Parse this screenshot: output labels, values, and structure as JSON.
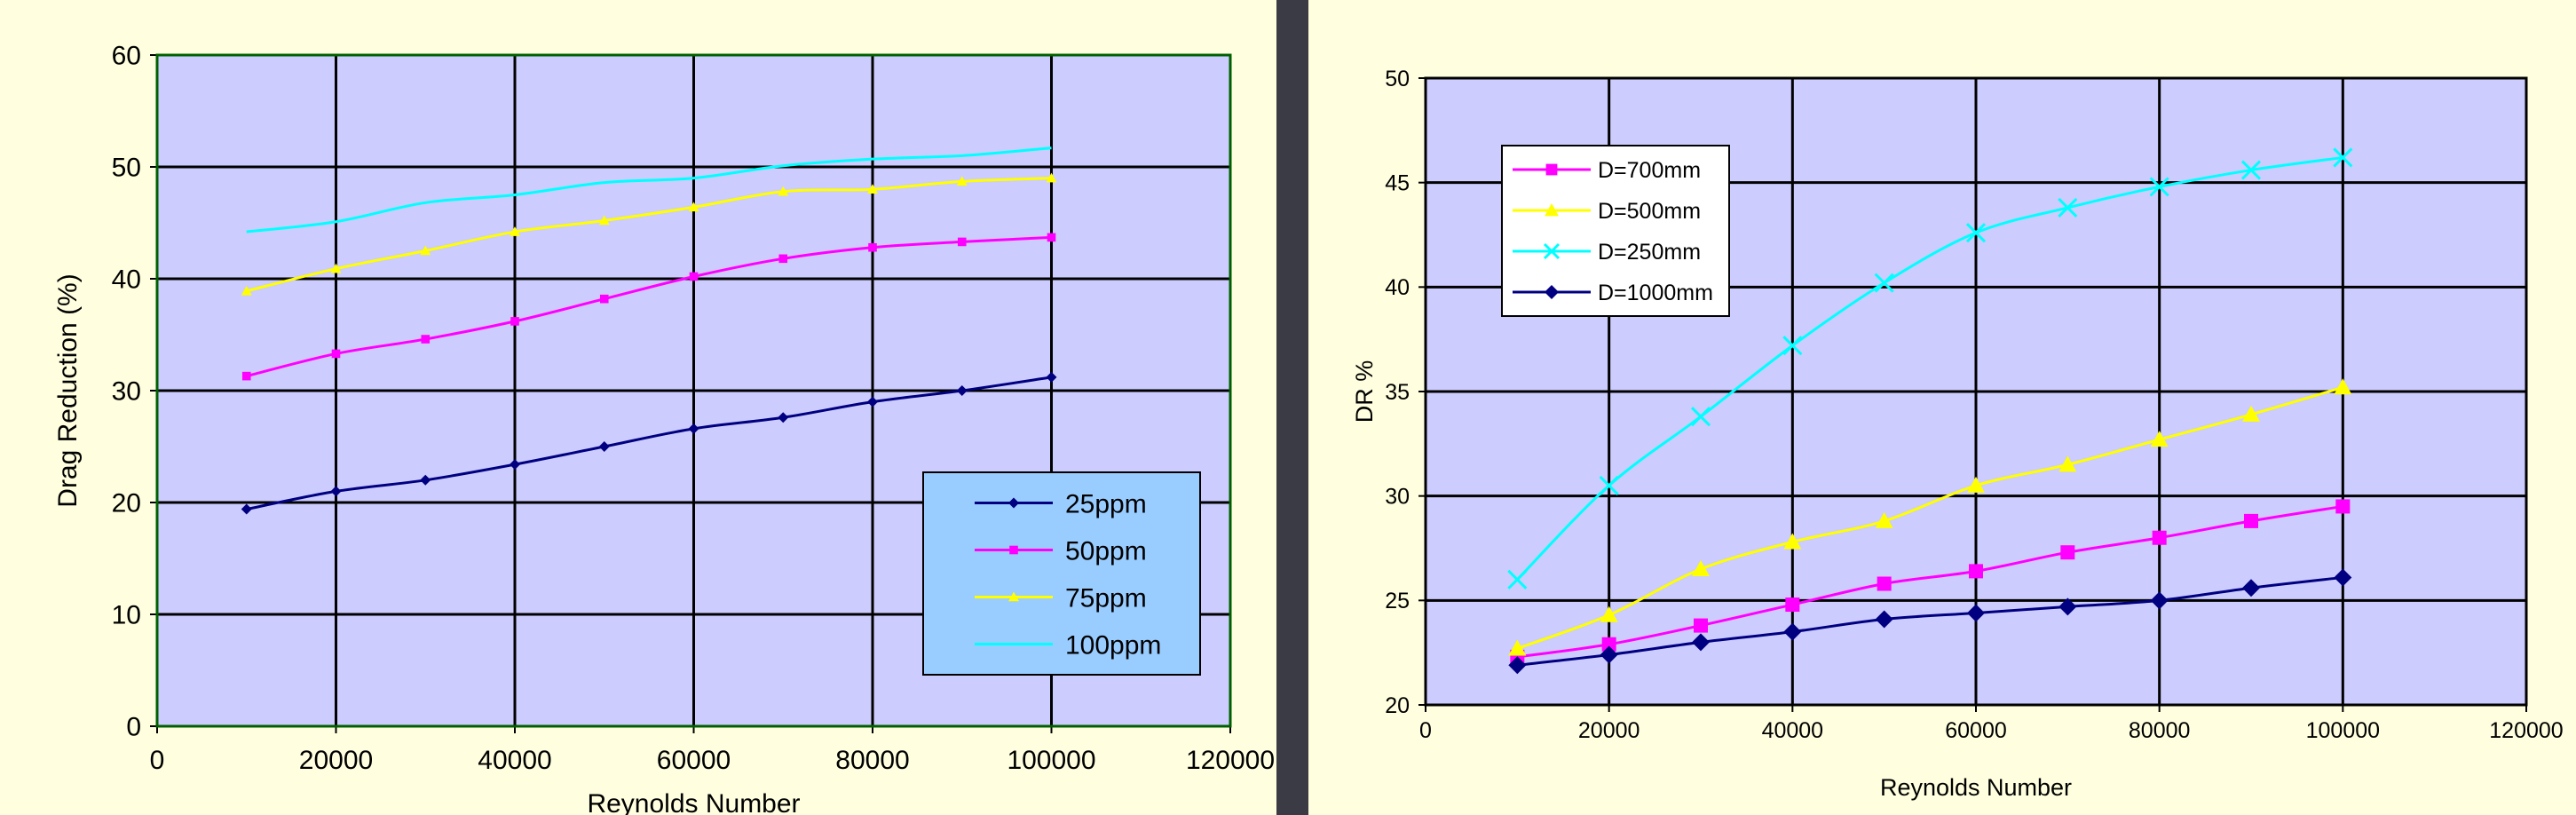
{
  "chart_data": [
    {
      "type": "line",
      "ylabel": "Drag Reduction (%)",
      "xlabel": "Reynolds Number",
      "xlim": [
        0,
        120000
      ],
      "ylim": [
        0,
        60
      ],
      "xticks": [
        0,
        20000,
        40000,
        60000,
        80000,
        100000,
        120000
      ],
      "yticks": [
        0,
        10,
        20,
        30,
        40,
        50,
        60
      ],
      "grid": true,
      "legend_position": "bottom-right",
      "x": [
        10000,
        20000,
        30000,
        40000,
        50000,
        60000,
        70000,
        80000,
        90000,
        100000
      ],
      "series": [
        {
          "name": "25ppm",
          "color": "#000080",
          "marker": "diamond",
          "values": [
            19.4,
            21.0,
            22.0,
            23.4,
            25.0,
            26.6,
            27.6,
            29.0,
            30.0,
            31.2
          ]
        },
        {
          "name": "50ppm",
          "color": "#ff00ff",
          "marker": "square",
          "values": [
            31.3,
            33.3,
            34.6,
            36.2,
            38.2,
            40.2,
            41.8,
            42.8,
            43.3,
            43.7
          ]
        },
        {
          "name": "75ppm",
          "color": "#ffff00",
          "marker": "triangle",
          "values": [
            38.9,
            40.9,
            42.5,
            44.2,
            45.2,
            46.4,
            47.8,
            48.0,
            48.7,
            49.0
          ]
        },
        {
          "name": "100ppm",
          "color": "#00ffff",
          "marker": "none",
          "values": [
            44.2,
            45.1,
            46.8,
            47.5,
            48.6,
            49.0,
            50.1,
            50.7,
            51.0,
            51.7
          ]
        }
      ]
    },
    {
      "type": "line",
      "ylabel": "DR %",
      "xlabel": "Reynolds Number",
      "xlim": [
        0,
        120000
      ],
      "ylim": [
        20,
        50
      ],
      "xticks": [
        0,
        20000,
        40000,
        60000,
        80000,
        100000,
        120000
      ],
      "yticks": [
        20,
        25,
        30,
        35,
        40,
        45,
        50
      ],
      "grid": true,
      "legend_position": "top-left",
      "x": [
        10000,
        20000,
        30000,
        40000,
        50000,
        60000,
        70000,
        80000,
        90000,
        100000
      ],
      "series": [
        {
          "name": "D=700mm",
          "color": "#ff00ff",
          "marker": "square",
          "values": [
            22.3,
            22.9,
            23.8,
            24.8,
            25.8,
            26.4,
            27.3,
            28.0,
            28.8,
            29.5
          ]
        },
        {
          "name": "D=500mm",
          "color": "#ffff00",
          "marker": "triangle",
          "values": [
            22.7,
            24.3,
            26.5,
            27.8,
            28.8,
            30.5,
            31.5,
            32.7,
            33.9,
            35.2
          ]
        },
        {
          "name": "D=250mm",
          "color": "#00ffff",
          "marker": "cross",
          "values": [
            26.0,
            30.5,
            33.8,
            37.2,
            40.2,
            42.6,
            43.8,
            44.8,
            45.6,
            46.2
          ]
        },
        {
          "name": "D=1000mm",
          "color": "#000080",
          "marker": "diamond",
          "values": [
            21.9,
            22.4,
            23.0,
            23.5,
            24.1,
            24.4,
            24.7,
            25.0,
            25.6,
            26.1
          ]
        }
      ]
    }
  ]
}
